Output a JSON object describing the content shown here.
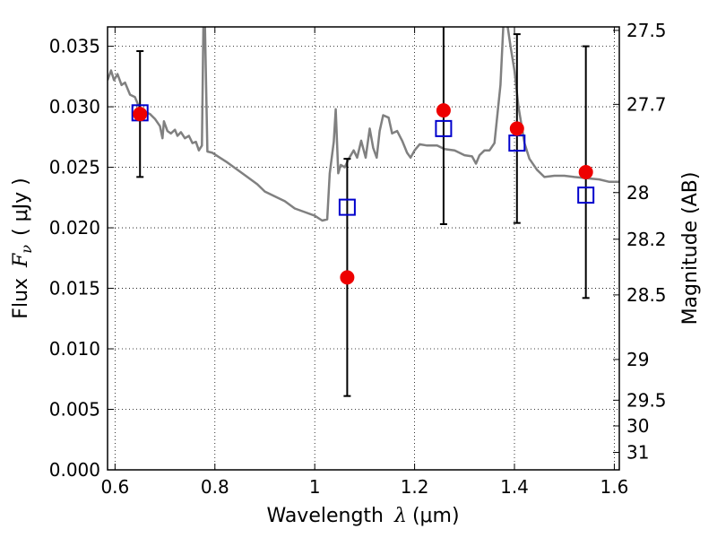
{
  "chart_data": {
    "type": "scatter",
    "title": "",
    "xlabel": {
      "prefix": "Wavelength",
      "symbol": "λ",
      "unit": "(μm)"
    },
    "ylabel": {
      "prefix": "Flux",
      "symbol": "F",
      "subscript": "ν",
      "unit": "( μJy )"
    },
    "y2label": "Magnitude (AB)",
    "xlim": [
      0.585,
      1.61
    ],
    "ylim": [
      0.0,
      0.0366
    ],
    "grid": true,
    "x_ticks": [
      {
        "value": 0.6,
        "label": "0.6"
      },
      {
        "value": 0.8,
        "label": "0.8"
      },
      {
        "value": 1.0,
        "label": "1"
      },
      {
        "value": 1.2,
        "label": "1.2"
      },
      {
        "value": 1.4,
        "label": "1.4"
      },
      {
        "value": 1.6,
        "label": "1.6"
      }
    ],
    "y_ticks": [
      {
        "value": 0.0,
        "label": "0.000"
      },
      {
        "value": 0.005,
        "label": "0.005"
      },
      {
        "value": 0.01,
        "label": "0.010"
      },
      {
        "value": 0.015,
        "label": "0.015"
      },
      {
        "value": 0.02,
        "label": "0.020"
      },
      {
        "value": 0.025,
        "label": "0.025"
      },
      {
        "value": 0.03,
        "label": "0.030"
      },
      {
        "value": 0.035,
        "label": "0.035"
      }
    ],
    "y2_ticks": [
      {
        "value": 27.5,
        "label": "27.5"
      },
      {
        "value": 27.7,
        "label": "27.7"
      },
      {
        "value": 28.0,
        "label": "28"
      },
      {
        "value": 28.2,
        "label": "28.2"
      },
      {
        "value": 28.5,
        "label": "28.5"
      },
      {
        "value": 29.0,
        "label": "29"
      },
      {
        "value": 29.5,
        "label": "29.5"
      },
      {
        "value": 30.0,
        "label": "30"
      },
      {
        "value": 31.0,
        "label": "31"
      }
    ],
    "model_spectrum": {
      "color": "#808080",
      "points": [
        [
          0.585,
          0.0322
        ],
        [
          0.592,
          0.033
        ],
        [
          0.598,
          0.0322
        ],
        [
          0.605,
          0.0327
        ],
        [
          0.613,
          0.0318
        ],
        [
          0.62,
          0.032
        ],
        [
          0.63,
          0.031
        ],
        [
          0.64,
          0.0308
        ],
        [
          0.65,
          0.0298
        ],
        [
          0.66,
          0.0296
        ],
        [
          0.67,
          0.0294
        ],
        [
          0.68,
          0.029
        ],
        [
          0.69,
          0.0284
        ],
        [
          0.695,
          0.0274
        ],
        [
          0.698,
          0.0288
        ],
        [
          0.705,
          0.028
        ],
        [
          0.712,
          0.0278
        ],
        [
          0.72,
          0.0281
        ],
        [
          0.725,
          0.0276
        ],
        [
          0.732,
          0.0279
        ],
        [
          0.74,
          0.0274
        ],
        [
          0.748,
          0.0276
        ],
        [
          0.755,
          0.027
        ],
        [
          0.762,
          0.0271
        ],
        [
          0.768,
          0.0264
        ],
        [
          0.774,
          0.0268
        ],
        [
          0.777,
          0.037
        ],
        [
          0.78,
          0.037
        ],
        [
          0.785,
          0.0263
        ],
        [
          0.795,
          0.0262
        ],
        [
          0.81,
          0.0258
        ],
        [
          0.825,
          0.0254
        ],
        [
          0.845,
          0.0248
        ],
        [
          0.865,
          0.0242
        ],
        [
          0.885,
          0.0236
        ],
        [
          0.9,
          0.023
        ],
        [
          0.92,
          0.0226
        ],
        [
          0.94,
          0.0222
        ],
        [
          0.96,
          0.0216
        ],
        [
          0.98,
          0.0213
        ],
        [
          1.0,
          0.021
        ],
        [
          1.015,
          0.0206
        ],
        [
          1.025,
          0.0207
        ],
        [
          1.03,
          0.0245
        ],
        [
          1.038,
          0.0271
        ],
        [
          1.042,
          0.0298
        ],
        [
          1.047,
          0.0245
        ],
        [
          1.052,
          0.0252
        ],
        [
          1.06,
          0.025
        ],
        [
          1.068,
          0.0257
        ],
        [
          1.078,
          0.0264
        ],
        [
          1.085,
          0.0258
        ],
        [
          1.093,
          0.0272
        ],
        [
          1.102,
          0.0258
        ],
        [
          1.11,
          0.0282
        ],
        [
          1.117,
          0.0266
        ],
        [
          1.124,
          0.0258
        ],
        [
          1.13,
          0.028
        ],
        [
          1.137,
          0.0293
        ],
        [
          1.148,
          0.0291
        ],
        [
          1.155,
          0.0278
        ],
        [
          1.165,
          0.028
        ],
        [
          1.175,
          0.0272
        ],
        [
          1.185,
          0.0262
        ],
        [
          1.192,
          0.0258
        ],
        [
          1.2,
          0.0264
        ],
        [
          1.21,
          0.0269
        ],
        [
          1.225,
          0.0268
        ],
        [
          1.245,
          0.0268
        ],
        [
          1.26,
          0.0265
        ],
        [
          1.28,
          0.0264
        ],
        [
          1.3,
          0.026
        ],
        [
          1.315,
          0.0259
        ],
        [
          1.323,
          0.0253
        ],
        [
          1.33,
          0.026
        ],
        [
          1.34,
          0.0264
        ],
        [
          1.35,
          0.0264
        ],
        [
          1.36,
          0.027
        ],
        [
          1.372,
          0.0318
        ],
        [
          1.378,
          0.037
        ],
        [
          1.385,
          0.037
        ],
        [
          1.392,
          0.035
        ],
        [
          1.4,
          0.033
        ],
        [
          1.408,
          0.03
        ],
        [
          1.42,
          0.027
        ],
        [
          1.43,
          0.0257
        ],
        [
          1.445,
          0.0248
        ],
        [
          1.46,
          0.0242
        ],
        [
          1.48,
          0.0243
        ],
        [
          1.5,
          0.0243
        ],
        [
          1.52,
          0.0242
        ],
        [
          1.545,
          0.0241
        ],
        [
          1.57,
          0.024
        ],
        [
          1.59,
          0.0238
        ],
        [
          1.61,
          0.0238
        ]
      ]
    },
    "series": [
      {
        "marker": "open-square",
        "color": "#0000cc",
        "points": [
          {
            "x": 0.65,
            "y": 0.0295
          },
          {
            "x": 1.065,
            "y": 0.0217
          },
          {
            "x": 1.258,
            "y": 0.0282
          },
          {
            "x": 1.405,
            "y": 0.027
          },
          {
            "x": 1.543,
            "y": 0.0227
          }
        ]
      },
      {
        "marker": "filled-circle",
        "color": "#ee0000",
        "points": [
          {
            "x": 0.65,
            "y": 0.0294,
            "err": 0.0052
          },
          {
            "x": 1.065,
            "y": 0.0159,
            "err": 0.0098
          },
          {
            "x": 1.258,
            "y": 0.0297,
            "err": 0.0094
          },
          {
            "x": 1.405,
            "y": 0.0282,
            "err": 0.0078
          },
          {
            "x": 1.543,
            "y": 0.0246,
            "err": 0.0104
          }
        ]
      }
    ]
  }
}
